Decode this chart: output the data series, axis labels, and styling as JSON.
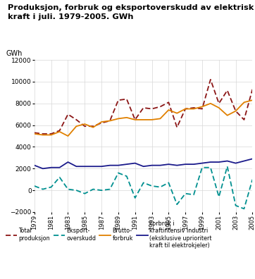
{
  "years": [
    1979,
    1980,
    1981,
    1982,
    1983,
    1984,
    1985,
    1986,
    1987,
    1988,
    1989,
    1990,
    1991,
    1992,
    1993,
    1994,
    1995,
    1996,
    1997,
    1998,
    1999,
    2000,
    2001,
    2002,
    2003,
    2004,
    2005
  ],
  "total_produksjon": [
    5300,
    5200,
    5200,
    5500,
    7000,
    6500,
    5900,
    5900,
    6200,
    6400,
    8300,
    8400,
    6500,
    7600,
    7500,
    7700,
    8100,
    5800,
    7500,
    7600,
    7500,
    10200,
    8000,
    9200,
    7300,
    6500,
    9300
  ],
  "eksport_overskudd": [
    400,
    100,
    300,
    1200,
    100,
    0,
    -300,
    100,
    0,
    100,
    1600,
    1300,
    -700,
    700,
    400,
    300,
    700,
    -1300,
    -300,
    -400,
    2100,
    2100,
    -600,
    2200,
    -1400,
    -1700,
    1000
  ],
  "brutto_forbruk": [
    5200,
    5100,
    5100,
    5400,
    5000,
    5900,
    6100,
    5800,
    6300,
    6400,
    6600,
    6700,
    6500,
    6500,
    6500,
    6600,
    7400,
    7100,
    7500,
    7500,
    7700,
    8000,
    7600,
    6900,
    7300,
    8100,
    8300
  ],
  "kraftintensiv": [
    2300,
    2000,
    2100,
    2100,
    2600,
    2200,
    2200,
    2200,
    2200,
    2300,
    2300,
    2400,
    2500,
    2200,
    2300,
    2300,
    2400,
    2300,
    2400,
    2400,
    2500,
    2600,
    2600,
    2700,
    2500,
    2700,
    2900
  ],
  "title": "Produksjon, forbruk og eksportoverskudd av elektrisk\nkraft i juli. 1979-2005. GWh",
  "ylabel": "GWh",
  "ylim": [
    -2000,
    12000
  ],
  "yticks": [
    -2000,
    0,
    2000,
    4000,
    6000,
    8000,
    10000,
    12000
  ],
  "color_produksjon": "#8B1515",
  "color_eksport": "#009090",
  "color_brutto": "#E08000",
  "color_kraftintensiv": "#1A1A8B",
  "title_bg": "#E0E0E0",
  "leg1_line1": "Total",
  "leg1_line2": "produksjon",
  "leg2_line1": "Eksport-",
  "leg2_line2": "overskudd",
  "leg3_line1": "Brutto-",
  "leg3_line2": "forbruk",
  "leg4": "Forbruk i\nkraftintensiv industri\n(eksklusive uprioritert\nkraft til elektrokjeler)"
}
